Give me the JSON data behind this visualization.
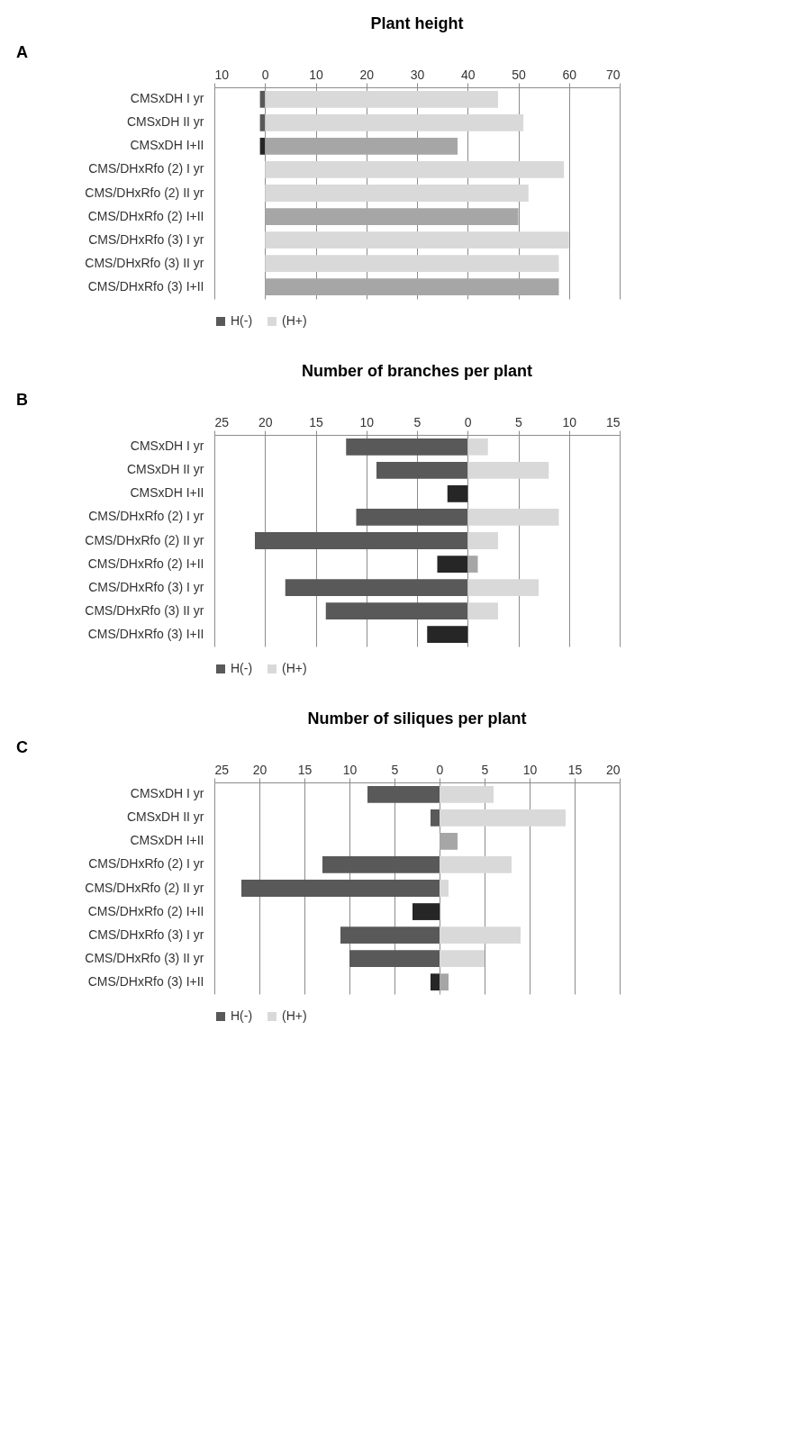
{
  "chart_data": [
    {
      "type": "bar",
      "orientation": "horizontal",
      "title": "Plant height",
      "annotations": [
        "A"
      ],
      "categories": [
        "CMSxDH I yr",
        "CMSxDH II yr",
        "CMSxDH I+II",
        "CMS/DHxRfo (2) I yr",
        "CMS/DHxRfo (2) II yr",
        "CMS/DHxRfo (2) I+II",
        "CMS/DHxRfo (3) I yr",
        "CMS/DHxRfo (3) II yr",
        "CMS/DHxRfo (3) I+II"
      ],
      "series": [
        {
          "name": "H(-)",
          "color": "#595959",
          "colors": [
            "#595959",
            "#595959",
            "#262626",
            null,
            null,
            null,
            null,
            null,
            null
          ],
          "values": [
            -1,
            -1,
            -1,
            null,
            null,
            null,
            null,
            null,
            null
          ]
        },
        {
          "name": "(H+)",
          "color": "#d9d9d9",
          "colors": [
            "#d9d9d9",
            "#d9d9d9",
            "#a6a6a6",
            "#d9d9d9",
            "#d9d9d9",
            "#a6a6a6",
            "#d9d9d9",
            "#d9d9d9",
            "#a6a6a6"
          ],
          "values": [
            46,
            51,
            38,
            59,
            52,
            50,
            60,
            58,
            58
          ]
        }
      ],
      "stacked": true,
      "xlim": [
        -10,
        70
      ],
      "xticks": [
        {
          "value": -10,
          "label": "10"
        },
        0,
        10,
        20,
        30,
        40,
        50,
        60,
        70
      ],
      "grid": "x",
      "legend": "bottom"
    },
    {
      "type": "bar",
      "orientation": "horizontal",
      "title": "Number of branches per plant",
      "annotations": [
        "B"
      ],
      "categories": [
        "CMSxDH I yr",
        "CMSxDH II yr",
        "CMSxDH I+II",
        "CMS/DHxRfo (2) I yr",
        "CMS/DHxRfo (2) II yr",
        "CMS/DHxRfo (2) I+II",
        "CMS/DHxRfo (3) I yr",
        "CMS/DHxRfo (3) II yr",
        "CMS/DHxRfo (3) I+II"
      ],
      "series": [
        {
          "name": "H(-)",
          "color": "#595959",
          "colors": [
            "#595959",
            "#595959",
            "#262626",
            "#595959",
            "#595959",
            "#262626",
            "#595959",
            "#595959",
            "#262626"
          ],
          "values": [
            -12,
            -9,
            -2,
            -11,
            -21,
            -3,
            -18,
            -14,
            -4
          ]
        },
        {
          "name": "(H+)",
          "color": "#d9d9d9",
          "colors": [
            "#d9d9d9",
            "#d9d9d9",
            null,
            "#d9d9d9",
            "#d9d9d9",
            "#a6a6a6",
            "#d9d9d9",
            "#d9d9d9",
            null
          ],
          "values": [
            2,
            8,
            null,
            9,
            3,
            1,
            7,
            3,
            null
          ]
        }
      ],
      "stacked": true,
      "xlim": [
        -25,
        15
      ],
      "xticks": [
        {
          "value": -25,
          "label": "25"
        },
        {
          "value": -20,
          "label": "20"
        },
        {
          "value": -15,
          "label": "15"
        },
        {
          "value": -10,
          "label": "10"
        },
        {
          "value": -5,
          "label": "5"
        },
        0,
        5,
        10,
        15
      ],
      "grid": "x",
      "legend": "bottom"
    },
    {
      "type": "bar",
      "orientation": "horizontal",
      "title": "Number of siliques per plant",
      "annotations": [
        "C"
      ],
      "categories": [
        "CMSxDH I yr",
        "CMSxDH II yr",
        "CMSxDH I+II",
        "CMS/DHxRfo (2) I yr",
        "CMS/DHxRfo (2) II yr",
        "CMS/DHxRfo (2) I+II",
        "CMS/DHxRfo (3) I yr",
        "CMS/DHxRfo (3) II yr",
        "CMS/DHxRfo (3) I+II"
      ],
      "series": [
        {
          "name": "H(-)",
          "color": "#595959",
          "colors": [
            "#595959",
            "#595959",
            null,
            "#595959",
            "#595959",
            "#262626",
            "#595959",
            "#595959",
            "#262626"
          ],
          "values": [
            -8,
            -1,
            null,
            -13,
            -22,
            -3,
            -11,
            -10,
            -1
          ]
        },
        {
          "name": "(H+)",
          "color": "#d9d9d9",
          "colors": [
            "#d9d9d9",
            "#d9d9d9",
            "#a6a6a6",
            "#d9d9d9",
            "#d9d9d9",
            null,
            "#d9d9d9",
            "#d9d9d9",
            "#a6a6a6"
          ],
          "values": [
            6,
            14,
            2,
            8,
            1,
            null,
            9,
            5,
            1
          ]
        }
      ],
      "stacked": true,
      "xlim": [
        -25,
        20
      ],
      "xticks": [
        {
          "value": -25,
          "label": "25"
        },
        {
          "value": -20,
          "label": "20"
        },
        {
          "value": -15,
          "label": "15"
        },
        {
          "value": -10,
          "label": "10"
        },
        {
          "value": -5,
          "label": "5"
        },
        0,
        5,
        10,
        15,
        20
      ],
      "grid": "x",
      "legend": "bottom"
    }
  ]
}
